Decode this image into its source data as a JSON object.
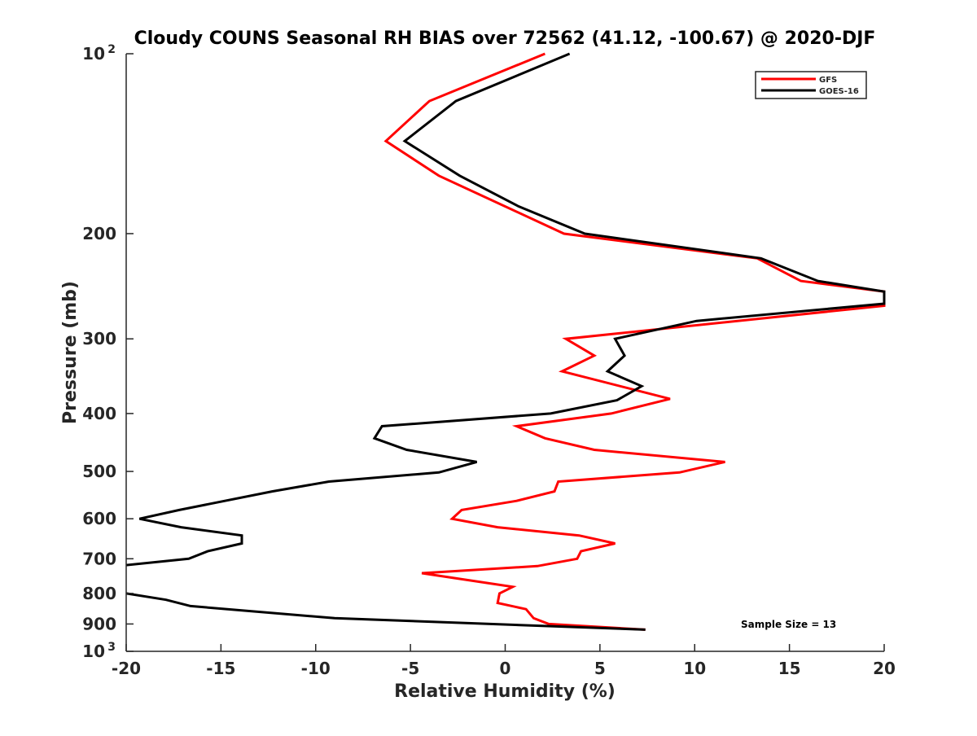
{
  "chart_data": {
    "type": "line",
    "title": "Cloudy COUNS Seasonal RH BIAS over 72562 (41.12, -100.67) @ 2020-DJF",
    "xlabel": "Relative Humidity (%)",
    "ylabel": "Pressure (mb)",
    "xlim": [
      -20,
      20
    ],
    "ylim": [
      100,
      1000
    ],
    "yscale": "log",
    "y_reversed": true,
    "grid": false,
    "legend_position": "top-right",
    "x_ticks": [
      "-20",
      "-15",
      "-10",
      "-5",
      "0",
      "5",
      "10",
      "15",
      "20"
    ],
    "x_tick_values": [
      -20,
      -15,
      -10,
      -5,
      0,
      5,
      10,
      15,
      20
    ],
    "y_ticks": [
      {
        "value": 100,
        "base": "10",
        "exp": "2"
      },
      {
        "value": 200,
        "label": "200"
      },
      {
        "value": 300,
        "label": "300"
      },
      {
        "value": 400,
        "label": "400"
      },
      {
        "value": 500,
        "label": "500"
      },
      {
        "value": 600,
        "label": "600"
      },
      {
        "value": 700,
        "label": "700"
      },
      {
        "value": 800,
        "label": "800"
      },
      {
        "value": 900,
        "label": "900"
      },
      {
        "value": 1000,
        "base": "10",
        "exp": "3"
      }
    ],
    "annotation": "Sample Size = 13",
    "series": [
      {
        "name": "GFS",
        "color": "#ff0000",
        "points": [
          [
            2.1,
            100
          ],
          [
            -4.0,
            120
          ],
          [
            -6.3,
            140
          ],
          [
            -3.5,
            160
          ],
          [
            3.1,
            200
          ],
          [
            13.3,
            220
          ],
          [
            15.6,
            240
          ],
          [
            20,
            250
          ],
          [
            20,
            264
          ],
          [
            3.2,
            300
          ],
          [
            4.7,
            320
          ],
          [
            3.0,
            340
          ],
          [
            8.7,
            378
          ],
          [
            5.6,
            400
          ],
          [
            0.6,
            420
          ],
          [
            2.1,
            440
          ],
          [
            4.7,
            460
          ],
          [
            11.6,
            482
          ],
          [
            9.2,
            502
          ],
          [
            2.8,
            520
          ],
          [
            2.6,
            540
          ],
          [
            0.6,
            560
          ],
          [
            -2.3,
            580
          ],
          [
            -2.8,
            600
          ],
          [
            -0.4,
            620
          ],
          [
            3.9,
            640
          ],
          [
            5.8,
            660
          ],
          [
            4.0,
            680
          ],
          [
            3.8,
            700
          ],
          [
            1.7,
            720
          ],
          [
            -4.4,
            740
          ],
          [
            0.4,
            780
          ],
          [
            -0.3,
            800
          ],
          [
            -0.4,
            830
          ],
          [
            1.1,
            850
          ],
          [
            1.5,
            880
          ],
          [
            2.3,
            900
          ],
          [
            7.4,
            920
          ]
        ]
      },
      {
        "name": "GOES-16",
        "color": "#000000",
        "points": [
          [
            3.4,
            100
          ],
          [
            -2.6,
            120
          ],
          [
            -5.3,
            140
          ],
          [
            -2.4,
            160
          ],
          [
            0.7,
            180
          ],
          [
            4.2,
            200
          ],
          [
            13.5,
            220
          ],
          [
            16.5,
            240
          ],
          [
            20,
            250
          ],
          [
            20,
            262
          ],
          [
            10.1,
            280
          ],
          [
            5.8,
            300
          ],
          [
            6.3,
            320
          ],
          [
            5.4,
            340
          ],
          [
            7.2,
            360
          ],
          [
            5.9,
            380
          ],
          [
            2.4,
            400
          ],
          [
            -6.5,
            420
          ],
          [
            -6.9,
            440
          ],
          [
            -5.2,
            460
          ],
          [
            -1.5,
            482
          ],
          [
            -3.5,
            502
          ],
          [
            -9.3,
            520
          ],
          [
            -12.3,
            540
          ],
          [
            -17.2,
            580
          ],
          [
            -19.3,
            600
          ],
          [
            -17.1,
            620
          ],
          [
            -13.9,
            640
          ],
          [
            -13.9,
            660
          ],
          [
            -15.7,
            680
          ],
          [
            -16.7,
            700
          ],
          [
            -20.5,
            720
          ],
          [
            -23,
            760
          ],
          [
            -20,
            800
          ],
          [
            -17.9,
            820
          ],
          [
            -16.6,
            840
          ],
          [
            -9.0,
            880
          ],
          [
            7.4,
            920
          ]
        ]
      }
    ]
  }
}
